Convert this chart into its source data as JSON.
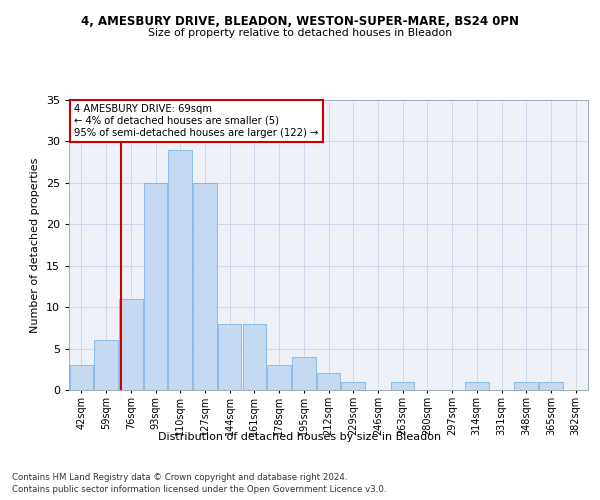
{
  "title1": "4, AMESBURY DRIVE, BLEADON, WESTON-SUPER-MARE, BS24 0PN",
  "title2": "Size of property relative to detached houses in Bleadon",
  "xlabel": "Distribution of detached houses by size in Bleadon",
  "ylabel": "Number of detached properties",
  "bin_labels": [
    "42sqm",
    "59sqm",
    "76sqm",
    "93sqm",
    "110sqm",
    "127sqm",
    "144sqm",
    "161sqm",
    "178sqm",
    "195sqm",
    "212sqm",
    "229sqm",
    "246sqm",
    "263sqm",
    "280sqm",
    "297sqm",
    "314sqm",
    "331sqm",
    "348sqm",
    "365sqm",
    "382sqm"
  ],
  "bar_heights": [
    3,
    6,
    11,
    25,
    29,
    25,
    8,
    8,
    3,
    4,
    2,
    1,
    0,
    1,
    0,
    0,
    1,
    0,
    1,
    1,
    0
  ],
  "bar_color": "#c5d9f1",
  "bar_edge_color": "#7eb6e6",
  "vline_color": "#cc0000",
  "vline_x_index": 1.47,
  "annotation_line1": "4 AMESBURY DRIVE: 69sqm",
  "annotation_line2": "← 4% of detached houses are smaller (5)",
  "annotation_line3": "95% of semi-detached houses are larger (122) →",
  "annotation_box_color": "#ffffff",
  "annotation_box_edge": "#cc0000",
  "ylim": [
    0,
    35
  ],
  "yticks": [
    0,
    5,
    10,
    15,
    20,
    25,
    30,
    35
  ],
  "footnote1": "Contains HM Land Registry data © Crown copyright and database right 2024.",
  "footnote2": "Contains public sector information licensed under the Open Government Licence v3.0.",
  "n_bars": 21
}
